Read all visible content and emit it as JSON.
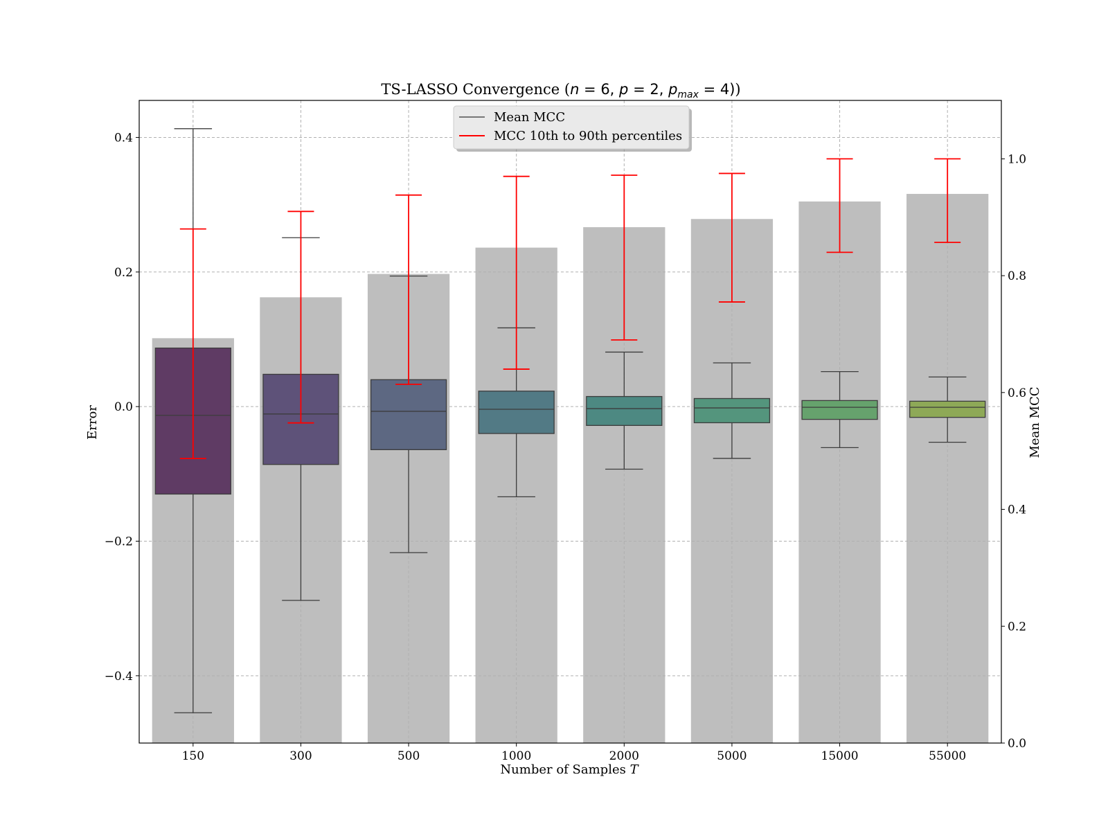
{
  "chart_data": {
    "type": "box+bar",
    "title": {
      "prefix": "TS-LASSO Convergence (",
      "n_var": "n",
      "n_eq": " = 6, ",
      "p_var": "p",
      "p_eq": " = 2, ",
      "pmax_var": "p",
      "pmax_sub": "max",
      "pmax_eq": " = 4)"
    },
    "xlabel_main": "Number of Samples ",
    "xlabel_var": "T",
    "ylabel_left": "Error",
    "ylabel_right": "Mean MCC",
    "categories": [
      "150",
      "300",
      "500",
      "1000",
      "2000",
      "5000",
      "15000",
      "55000"
    ],
    "left_axis": {
      "ylim": [
        -0.5,
        0.455
      ],
      "ticks": [
        0.4,
        0.2,
        0.0,
        -0.2,
        -0.4
      ],
      "tick_labels": [
        "0.4",
        "0.2",
        "0.0",
        "−0.2",
        "−0.4"
      ]
    },
    "right_axis": {
      "ylim": [
        0.0,
        1.1
      ],
      "ticks": [
        1.0,
        0.8,
        0.6,
        0.4,
        0.2,
        0.0
      ],
      "tick_labels": [
        "1.0",
        "0.8",
        "0.6",
        "0.4",
        "0.2",
        "0.0"
      ]
    },
    "grid": true,
    "legend_position": "upper center",
    "legend": [
      {
        "label": "Mean MCC",
        "color": "#777777"
      },
      {
        "label": "MCC 10th to 90th percentiles",
        "color": "#ff0000"
      }
    ],
    "error_boxplots": [
      {
        "whisker_low": -0.455,
        "q1": -0.13,
        "median": -0.013,
        "q3": 0.087,
        "whisker_high": 0.413,
        "color": "#5f3b64"
      },
      {
        "whisker_low": -0.288,
        "q1": -0.086,
        "median": -0.011,
        "q3": 0.048,
        "whisker_high": 0.251,
        "color": "#5e5279"
      },
      {
        "whisker_low": -0.217,
        "q1": -0.064,
        "median": -0.007,
        "q3": 0.04,
        "whisker_high": 0.194,
        "color": "#5d6882"
      },
      {
        "whisker_low": -0.134,
        "q1": -0.04,
        "median": -0.004,
        "q3": 0.023,
        "whisker_high": 0.117,
        "color": "#527a85"
      },
      {
        "whisker_low": -0.093,
        "q1": -0.028,
        "median": -0.003,
        "q3": 0.015,
        "whisker_high": 0.081,
        "color": "#4d8982"
      },
      {
        "whisker_low": -0.077,
        "q1": -0.024,
        "median": -0.002,
        "q3": 0.012,
        "whisker_high": 0.065,
        "color": "#54957d"
      },
      {
        "whisker_low": -0.061,
        "q1": -0.019,
        "median": -0.001,
        "q3": 0.009,
        "whisker_high": 0.052,
        "color": "#66a26d"
      },
      {
        "whisker_low": -0.053,
        "q1": -0.016,
        "median": -0.001,
        "q3": 0.008,
        "whisker_high": 0.044,
        "color": "#8ea957"
      }
    ],
    "mean_mcc": [
      0.693,
      0.763,
      0.803,
      0.848,
      0.883,
      0.897,
      0.927,
      0.94
    ],
    "mcc_p10": [
      0.487,
      0.548,
      0.614,
      0.64,
      0.69,
      0.755,
      0.84,
      0.857
    ],
    "mcc_p90": [
      0.88,
      0.91,
      0.938,
      0.97,
      0.972,
      0.975,
      1.0,
      1.0
    ],
    "bar_color": "#bebebe",
    "whisker_color": "#3c3c3c",
    "range_color": "#ff0000"
  }
}
